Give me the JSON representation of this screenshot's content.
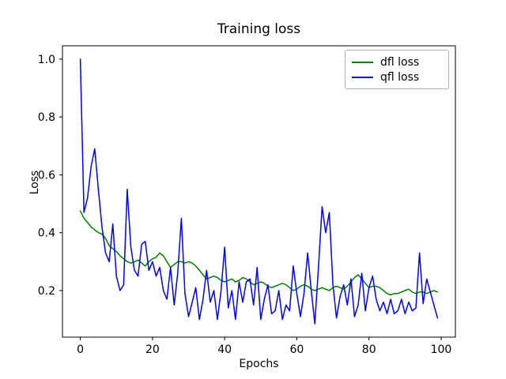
{
  "figure": {
    "title": "Training loss",
    "xlabel": "Epochs",
    "ylabel": "Loss"
  },
  "legend": {
    "entries": [
      {
        "label": "dfl loss",
        "color": "#008000"
      },
      {
        "label": "qfl loss",
        "color": "#0000ff"
      }
    ]
  },
  "chart_data": {
    "type": "line",
    "title": "Training loss",
    "xlabel": "Epochs",
    "ylabel": "Loss",
    "grid": false,
    "legend_position": "upper right",
    "xticks": [
      0,
      20,
      40,
      60,
      80,
      100
    ],
    "xtick_labels": [
      "0",
      "20",
      "40",
      "60",
      "80",
      "100"
    ],
    "yticks": [
      0.2,
      0.4,
      0.6,
      0.8,
      1.0
    ],
    "ytick_labels": [
      "0.2",
      "0.4",
      "0.6",
      "0.8",
      "1.0"
    ],
    "xlim": [
      -4.95,
      103.95
    ],
    "ylim": [
      0.039,
      1.046
    ],
    "x": [
      0,
      1,
      2,
      3,
      4,
      5,
      6,
      7,
      8,
      9,
      10,
      11,
      12,
      13,
      14,
      15,
      16,
      17,
      18,
      19,
      20,
      21,
      22,
      23,
      24,
      25,
      26,
      27,
      28,
      29,
      30,
      31,
      32,
      33,
      34,
      35,
      36,
      37,
      38,
      39,
      40,
      41,
      42,
      43,
      44,
      45,
      46,
      47,
      48,
      49,
      50,
      51,
      52,
      53,
      54,
      55,
      56,
      57,
      58,
      59,
      60,
      61,
      62,
      63,
      64,
      65,
      66,
      67,
      68,
      69,
      70,
      71,
      72,
      73,
      74,
      75,
      76,
      77,
      78,
      79,
      80,
      81,
      82,
      83,
      84,
      85,
      86,
      87,
      88,
      89,
      90,
      91,
      92,
      93,
      94,
      95,
      96,
      97,
      98,
      99
    ],
    "series": [
      {
        "name": "dfl loss",
        "color": "#008000",
        "values": [
          0.475,
          0.45,
          0.435,
          0.42,
          0.41,
          0.4,
          0.395,
          0.38,
          0.355,
          0.345,
          0.335,
          0.32,
          0.31,
          0.3,
          0.295,
          0.3,
          0.305,
          0.295,
          0.285,
          0.3,
          0.31,
          0.315,
          0.33,
          0.32,
          0.3,
          0.28,
          0.29,
          0.3,
          0.3,
          0.295,
          0.3,
          0.295,
          0.285,
          0.27,
          0.255,
          0.24,
          0.245,
          0.25,
          0.245,
          0.235,
          0.23,
          0.235,
          0.24,
          0.23,
          0.235,
          0.245,
          0.24,
          0.23,
          0.22,
          0.225,
          0.23,
          0.225,
          0.215,
          0.21,
          0.215,
          0.22,
          0.225,
          0.22,
          0.21,
          0.2,
          0.205,
          0.215,
          0.22,
          0.215,
          0.205,
          0.2,
          0.205,
          0.21,
          0.205,
          0.2,
          0.21,
          0.215,
          0.21,
          0.205,
          0.215,
          0.23,
          0.245,
          0.255,
          0.24,
          0.225,
          0.21,
          0.215,
          0.215,
          0.21,
          0.2,
          0.19,
          0.185,
          0.19,
          0.19,
          0.195,
          0.2,
          0.205,
          0.195,
          0.19,
          0.195,
          0.195,
          0.19,
          0.195,
          0.2,
          0.195
        ]
      },
      {
        "name": "qfl loss",
        "color": "#0000ff",
        "values": [
          1.0,
          0.47,
          0.52,
          0.63,
          0.69,
          0.55,
          0.42,
          0.33,
          0.3,
          0.43,
          0.25,
          0.2,
          0.22,
          0.55,
          0.35,
          0.27,
          0.25,
          0.36,
          0.37,
          0.27,
          0.3,
          0.25,
          0.28,
          0.2,
          0.17,
          0.28,
          0.15,
          0.26,
          0.45,
          0.19,
          0.11,
          0.16,
          0.21,
          0.1,
          0.17,
          0.27,
          0.16,
          0.2,
          0.1,
          0.2,
          0.35,
          0.14,
          0.2,
          0.1,
          0.23,
          0.16,
          0.23,
          0.24,
          0.15,
          0.28,
          0.1,
          0.17,
          0.22,
          0.12,
          0.13,
          0.2,
          0.1,
          0.15,
          0.13,
          0.285,
          0.19,
          0.11,
          0.19,
          0.33,
          0.2,
          0.085,
          0.28,
          0.49,
          0.4,
          0.47,
          0.22,
          0.105,
          0.18,
          0.22,
          0.15,
          0.24,
          0.11,
          0.15,
          0.26,
          0.13,
          0.21,
          0.25,
          0.17,
          0.13,
          0.16,
          0.12,
          0.17,
          0.12,
          0.13,
          0.17,
          0.12,
          0.16,
          0.13,
          0.14,
          0.33,
          0.155,
          0.24,
          0.195,
          0.15,
          0.105
        ]
      }
    ]
  }
}
